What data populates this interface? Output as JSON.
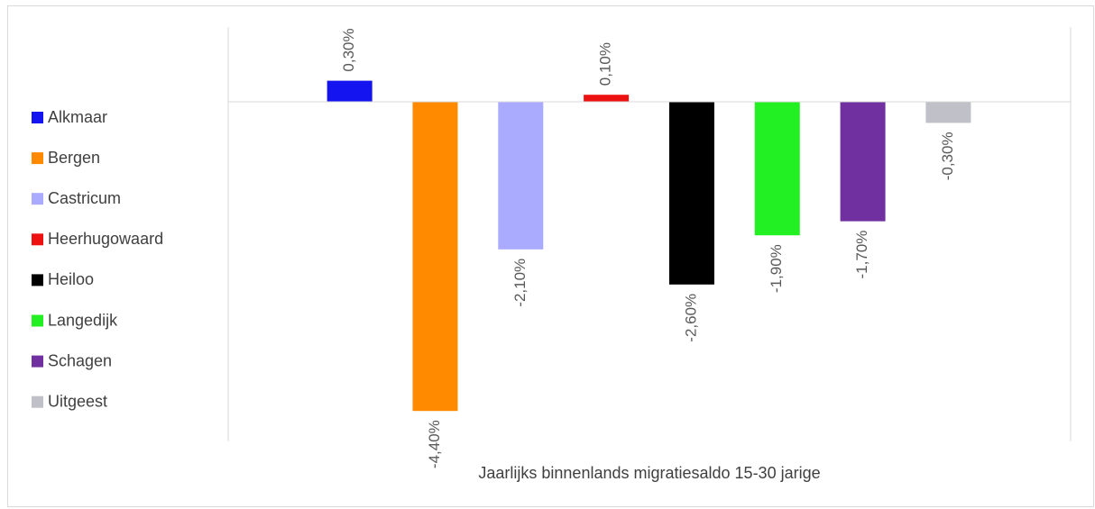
{
  "chart_data": {
    "type": "bar",
    "categories": [
      "Jaarlijks binnenlands migratiesaldo 15-30 jarige"
    ],
    "series": [
      {
        "name": "Alkmaar",
        "color": "#1414f0",
        "values": [
          0.3
        ],
        "value_labels": [
          "0,30%"
        ]
      },
      {
        "name": "Bergen",
        "color": "#ff8a00",
        "values": [
          -4.4
        ],
        "value_labels": [
          "-4,40%"
        ]
      },
      {
        "name": "Castricum",
        "color": "#aaaaff",
        "values": [
          -2.1
        ],
        "value_labels": [
          "-2,10%"
        ]
      },
      {
        "name": "Heerhugowaard",
        "color": "#ee1111",
        "values": [
          0.1
        ],
        "value_labels": [
          "0,10%"
        ]
      },
      {
        "name": "Heiloo",
        "color": "#000000",
        "values": [
          -2.6
        ],
        "value_labels": [
          "-2,60%"
        ]
      },
      {
        "name": "Langedijk",
        "color": "#22f022",
        "values": [
          -1.9
        ],
        "value_labels": [
          "-1,90%"
        ]
      },
      {
        "name": "Schagen",
        "color": "#7030a0",
        "values": [
          -1.7
        ],
        "value_labels": [
          "-1,70%"
        ]
      },
      {
        "name": "Uitgeest",
        "color": "#c0c0c8",
        "values": [
          -0.3
        ],
        "value_labels": [
          "-0,30%"
        ]
      }
    ],
    "legend": "left"
  }
}
